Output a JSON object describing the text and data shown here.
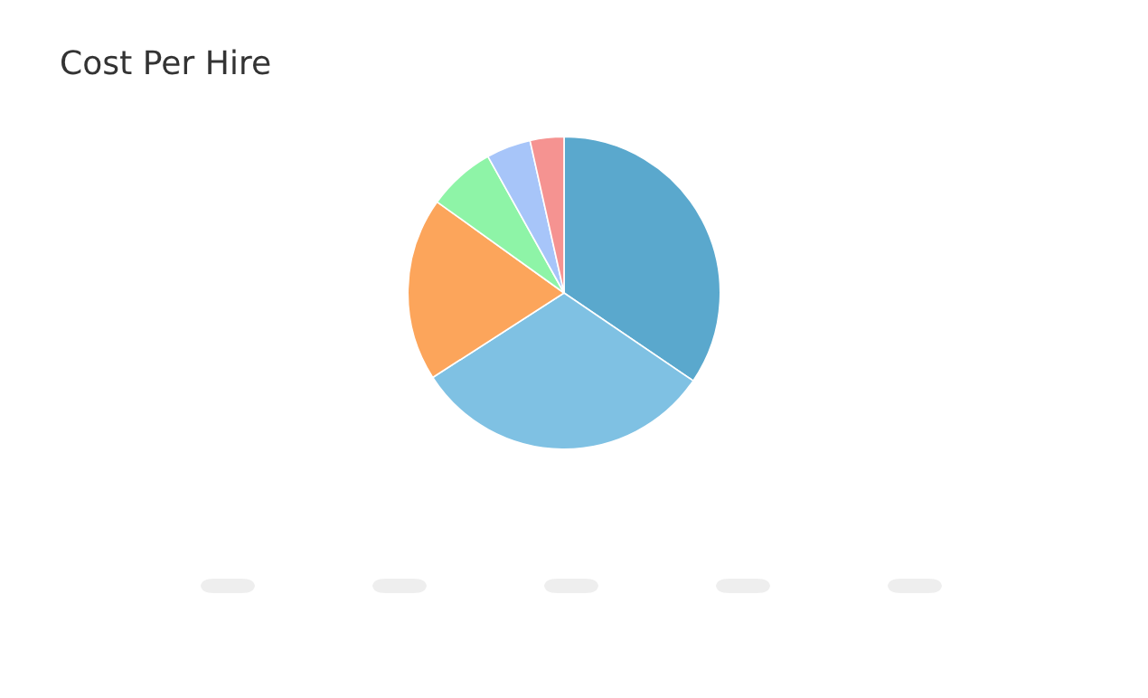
{
  "chart_data": {
    "type": "pie",
    "title": "Cost Per Hire",
    "categories": [
      null,
      null,
      null,
      null,
      null,
      null
    ],
    "values": [
      34.5,
      31.4,
      19,
      7,
      4.6,
      3.5
    ],
    "colors": [
      "#5aa8cd",
      "#7fc1e3",
      "#fca55b",
      "#8ef4a7",
      "#a7c5f9",
      "#f59391"
    ]
  }
}
